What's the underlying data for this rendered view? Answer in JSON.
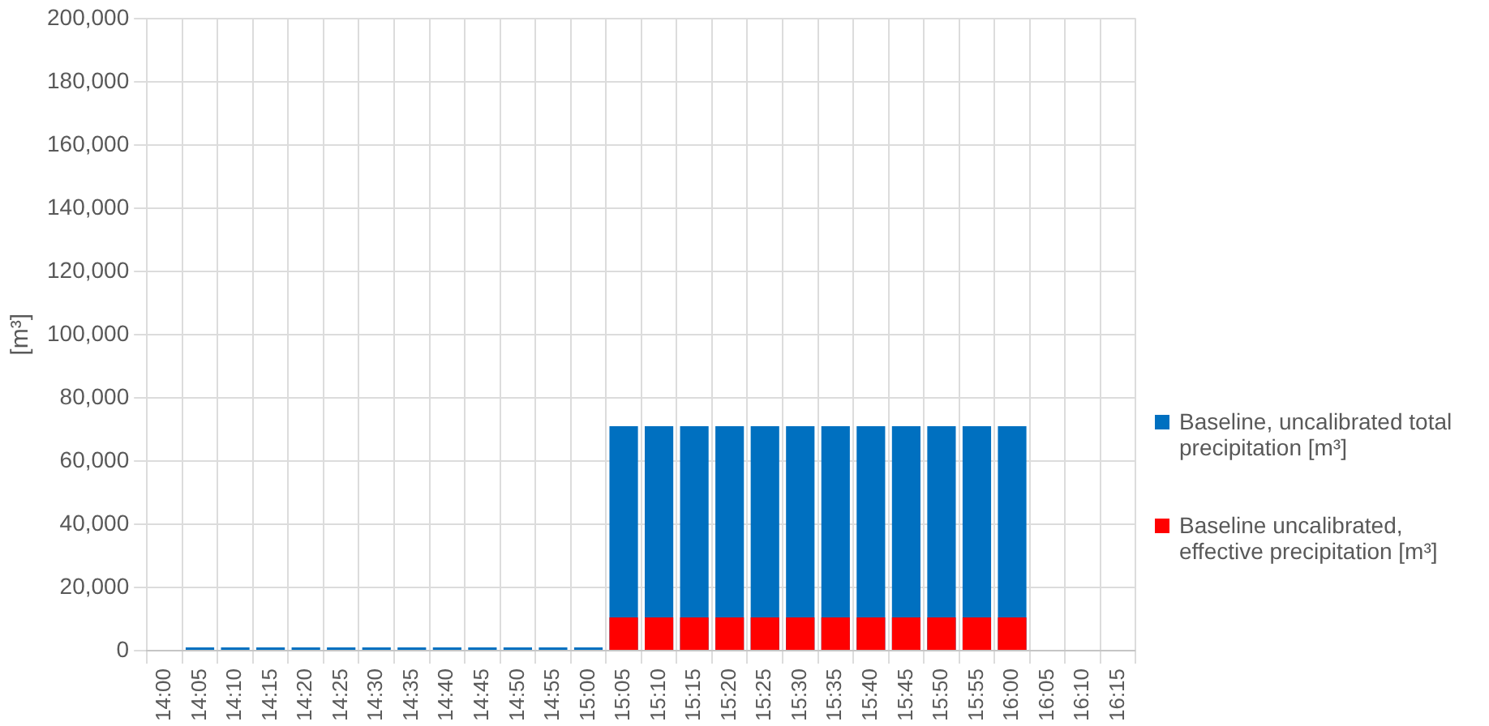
{
  "chart_data": {
    "type": "bar",
    "ylabel": "[m³]",
    "categories": [
      "14:00",
      "14:05",
      "14:10",
      "14:15",
      "14:20",
      "14:25",
      "14:30",
      "14:35",
      "14:40",
      "14:45",
      "14:50",
      "14:55",
      "15:00",
      "15:05",
      "15:10",
      "15:15",
      "15:20",
      "15:25",
      "15:30",
      "15:35",
      "15:40",
      "15:45",
      "15:50",
      "15:55",
      "16:00",
      "16:05",
      "16:10",
      "16:15"
    ],
    "series": [
      {
        "name": "Baseline, uncalibrated total precipitation [m³]",
        "color": "#0070c0",
        "values": [
          null,
          1000,
          1000,
          1000,
          1000,
          1000,
          1000,
          1000,
          1000,
          1000,
          1000,
          1000,
          1000,
          71000,
          71000,
          71000,
          71000,
          71000,
          71000,
          71000,
          71000,
          71000,
          71000,
          71000,
          71000,
          null,
          null,
          null
        ]
      },
      {
        "name": "Baseline uncalibrated, effective precipitation [m³]",
        "color": "#ff0000",
        "values": [
          null,
          null,
          null,
          null,
          null,
          null,
          null,
          null,
          null,
          null,
          null,
          null,
          null,
          10500,
          10500,
          10500,
          10500,
          10500,
          10500,
          10500,
          10500,
          10500,
          10500,
          10500,
          10500,
          null,
          null,
          null
        ]
      }
    ],
    "ylim": [
      0,
      200000
    ],
    "yticks": [
      0,
      {
        "value": 20000,
        "label": "20,000"
      },
      {
        "value": 40000,
        "label": "40,000"
      },
      {
        "value": 60000,
        "label": "60,000"
      },
      {
        "value": 80000,
        "label": "80,000"
      },
      {
        "value": 100000,
        "label": "100,000"
      },
      {
        "value": 120000,
        "label": "120,000"
      },
      {
        "value": 140000,
        "label": "140,000"
      },
      {
        "value": 160000,
        "label": "160,000"
      },
      {
        "value": 180000,
        "label": "180,000"
      },
      {
        "value": 200000,
        "label": "200,000"
      }
    ],
    "grid": true,
    "legend": "right"
  }
}
